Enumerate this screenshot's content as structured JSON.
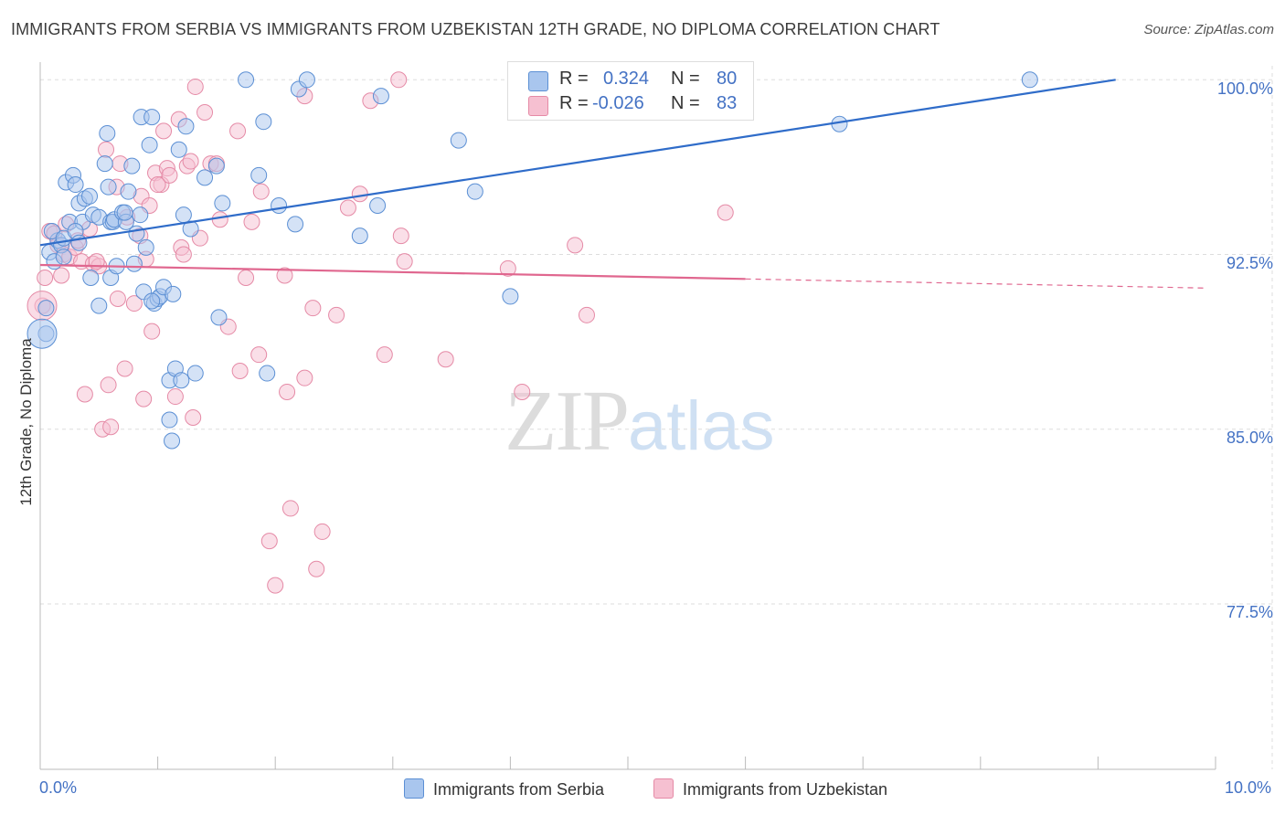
{
  "title": "IMMIGRANTS FROM SERBIA VS IMMIGRANTS FROM UZBEKISTAN 12TH GRADE, NO DIPLOMA CORRELATION CHART",
  "source": "Source: ZipAtlas.com",
  "watermark": {
    "zip": "ZIP",
    "atlas": "atlas"
  },
  "colors": {
    "serbia_fill": "#a9c6ee",
    "serbia_stroke": "#5b8fd4",
    "serbia_line": "#2f6cc9",
    "uzbek_fill": "#f6c0d1",
    "uzbek_stroke": "#e58aa6",
    "uzbek_line": "#e0678f",
    "axis_label": "#4472c4",
    "grid": "#dddddd"
  },
  "legend": {
    "rows": [
      {
        "r_label": "R =",
        "r_value": "0.324",
        "n_label": "N =",
        "n_value": "80"
      },
      {
        "r_label": "R =",
        "r_value": "-0.026",
        "n_label": "N =",
        "n_value": "83"
      }
    ]
  },
  "bottom_legend": {
    "serbia": "Immigrants from Serbia",
    "uzbek": "Immigrants from Uzbekistan"
  },
  "axes": {
    "y_title": "12th Grade, No Diploma",
    "y_ticks": [
      "100.0%",
      "92.5%",
      "85.0%",
      "77.5%"
    ],
    "x_left": "0.0%",
    "x_right": "10.0%"
  },
  "chart_data": {
    "type": "scatter",
    "title": "IMMIGRANTS FROM SERBIA VS IMMIGRANTS FROM UZBEKISTAN 12TH GRADE, NO DIPLOMA CORRELATION CHART",
    "xlabel": "",
    "ylabel": "12th Grade, No Diploma",
    "xlim": [
      0,
      10
    ],
    "ylim": [
      70.4,
      100.6
    ],
    "y_ticks": [
      100.0,
      92.5,
      85.0,
      77.5
    ],
    "grid": true,
    "legend_position": "top-center",
    "series": [
      {
        "name": "Immigrants from Serbia",
        "R": 0.324,
        "N": 80,
        "trend": {
          "x": [
            0.0,
            9.15
          ],
          "y": [
            92.9,
            100.0
          ]
        },
        "points": [
          [
            0.05,
            89.1
          ],
          [
            0.05,
            90.2
          ],
          [
            0.08,
            92.6
          ],
          [
            0.12,
            92.2
          ],
          [
            0.15,
            93.1
          ],
          [
            0.1,
            93.5
          ],
          [
            0.18,
            92.9
          ],
          [
            0.2,
            93.2
          ],
          [
            0.22,
            95.6
          ],
          [
            0.25,
            93.9
          ],
          [
            0.28,
            95.9
          ],
          [
            0.3,
            95.5
          ],
          [
            0.33,
            94.7
          ],
          [
            0.38,
            94.9
          ],
          [
            0.36,
            93.9
          ],
          [
            0.3,
            93.5
          ],
          [
            0.42,
            95.0
          ],
          [
            0.45,
            94.2
          ],
          [
            0.5,
            94.1
          ],
          [
            0.55,
            96.4
          ],
          [
            0.57,
            97.7
          ],
          [
            0.58,
            95.4
          ],
          [
            0.6,
            93.9
          ],
          [
            0.62,
            93.9
          ],
          [
            0.63,
            94.0
          ],
          [
            0.7,
            94.3
          ],
          [
            0.73,
            93.9
          ],
          [
            0.75,
            95.2
          ],
          [
            0.78,
            96.3
          ],
          [
            0.8,
            92.1
          ],
          [
            0.82,
            93.4
          ],
          [
            0.85,
            94.2
          ],
          [
            0.86,
            98.4
          ],
          [
            0.88,
            90.9
          ],
          [
            0.9,
            92.8
          ],
          [
            0.93,
            97.2
          ],
          [
            0.95,
            98.4
          ],
          [
            0.97,
            90.4
          ],
          [
            1.0,
            90.6
          ],
          [
            1.02,
            90.7
          ],
          [
            1.05,
            91.1
          ],
          [
            1.1,
            87.1
          ],
          [
            1.12,
            84.5
          ],
          [
            1.15,
            87.6
          ],
          [
            1.13,
            90.8
          ],
          [
            1.18,
            97.0
          ],
          [
            1.22,
            94.2
          ],
          [
            1.24,
            98.0
          ],
          [
            1.28,
            93.6
          ],
          [
            1.32,
            87.4
          ],
          [
            1.4,
            95.8
          ],
          [
            1.5,
            96.3
          ],
          [
            1.52,
            89.8
          ],
          [
            1.55,
            94.7
          ],
          [
            1.75,
            100.0
          ],
          [
            1.86,
            95.9
          ],
          [
            1.9,
            98.2
          ],
          [
            1.93,
            87.4
          ],
          [
            2.03,
            94.6
          ],
          [
            2.17,
            93.8
          ],
          [
            2.2,
            99.6
          ],
          [
            2.27,
            100.0
          ],
          [
            2.72,
            93.3
          ],
          [
            2.87,
            94.6
          ],
          [
            2.9,
            99.3
          ],
          [
            3.56,
            97.4
          ],
          [
            3.7,
            95.2
          ],
          [
            4.0,
            90.7
          ],
          [
            0.6,
            91.5
          ],
          [
            0.43,
            91.5
          ],
          [
            0.5,
            90.3
          ],
          [
            0.65,
            92.0
          ],
          [
            0.95,
            90.5
          ],
          [
            0.2,
            92.4
          ],
          [
            0.33,
            93.0
          ],
          [
            1.1,
            85.4
          ],
          [
            1.2,
            87.1
          ],
          [
            0.72,
            94.3
          ],
          [
            6.8,
            98.1
          ],
          [
            8.42,
            100.0
          ]
        ]
      },
      {
        "name": "Immigrants from Uzbekistan",
        "R": -0.026,
        "N": 83,
        "trend": {
          "x": [
            0.0,
            6.0
          ],
          "y": [
            92.05,
            91.45
          ]
        },
        "points": [
          [
            0.02,
            90.3
          ],
          [
            0.04,
            91.5
          ],
          [
            0.08,
            93.5
          ],
          [
            0.12,
            93.4
          ],
          [
            0.15,
            92.9
          ],
          [
            0.18,
            91.6
          ],
          [
            0.2,
            92.5
          ],
          [
            0.22,
            93.8
          ],
          [
            0.25,
            92.4
          ],
          [
            0.3,
            92.8
          ],
          [
            0.32,
            93.1
          ],
          [
            0.35,
            92.2
          ],
          [
            0.38,
            86.5
          ],
          [
            0.42,
            93.6
          ],
          [
            0.45,
            92.1
          ],
          [
            0.5,
            92.0
          ],
          [
            0.53,
            85.0
          ],
          [
            0.56,
            97.0
          ],
          [
            0.6,
            85.1
          ],
          [
            0.65,
            95.4
          ],
          [
            0.66,
            90.6
          ],
          [
            0.68,
            96.4
          ],
          [
            0.72,
            87.6
          ],
          [
            0.74,
            94.1
          ],
          [
            0.8,
            90.4
          ],
          [
            0.85,
            93.3
          ],
          [
            0.86,
            95.0
          ],
          [
            0.88,
            86.3
          ],
          [
            0.9,
            92.3
          ],
          [
            0.95,
            89.2
          ],
          [
            0.98,
            96.0
          ],
          [
            1.03,
            95.5
          ],
          [
            1.05,
            97.8
          ],
          [
            1.08,
            96.2
          ],
          [
            1.1,
            95.9
          ],
          [
            1.15,
            86.4
          ],
          [
            1.18,
            98.3
          ],
          [
            1.2,
            92.8
          ],
          [
            1.25,
            96.3
          ],
          [
            1.28,
            96.5
          ],
          [
            1.3,
            85.5
          ],
          [
            1.32,
            99.7
          ],
          [
            1.36,
            93.2
          ],
          [
            1.4,
            98.6
          ],
          [
            1.45,
            96.4
          ],
          [
            1.5,
            96.4
          ],
          [
            1.53,
            94.0
          ],
          [
            1.6,
            89.4
          ],
          [
            1.68,
            97.8
          ],
          [
            1.7,
            87.5
          ],
          [
            1.75,
            91.5
          ],
          [
            1.8,
            93.9
          ],
          [
            1.86,
            88.2
          ],
          [
            1.88,
            95.2
          ],
          [
            1.95,
            80.2
          ],
          [
            2.0,
            78.3
          ],
          [
            2.08,
            91.6
          ],
          [
            2.1,
            86.6
          ],
          [
            2.13,
            81.6
          ],
          [
            2.25,
            87.2
          ],
          [
            2.32,
            90.2
          ],
          [
            2.35,
            79.0
          ],
          [
            2.4,
            80.6
          ],
          [
            2.52,
            89.9
          ],
          [
            2.62,
            94.5
          ],
          [
            2.72,
            95.1
          ],
          [
            2.81,
            99.1
          ],
          [
            2.93,
            88.2
          ],
          [
            3.05,
            100.0
          ],
          [
            3.07,
            93.3
          ],
          [
            3.45,
            88.0
          ],
          [
            3.98,
            91.9
          ],
          [
            4.1,
            86.6
          ],
          [
            4.55,
            92.9
          ],
          [
            4.65,
            89.9
          ],
          [
            5.83,
            94.3
          ],
          [
            0.93,
            94.6
          ],
          [
            0.48,
            92.2
          ],
          [
            0.58,
            86.9
          ],
          [
            1.0,
            95.5
          ],
          [
            1.22,
            92.5
          ],
          [
            2.25,
            99.3
          ],
          [
            3.1,
            92.2
          ]
        ]
      }
    ]
  }
}
